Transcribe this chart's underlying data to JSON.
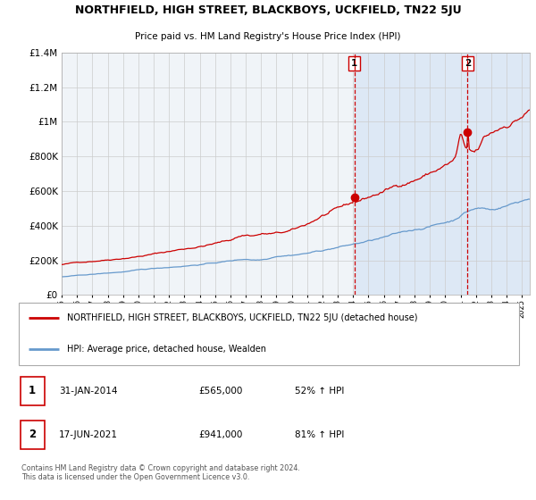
{
  "title": "NORTHFIELD, HIGH STREET, BLACKBOYS, UCKFIELD, TN22 5JU",
  "subtitle": "Price paid vs. HM Land Registry's House Price Index (HPI)",
  "red_label": "NORTHFIELD, HIGH STREET, BLACKBOYS, UCKFIELD, TN22 5JU (detached house)",
  "blue_label": "HPI: Average price, detached house, Wealden",
  "annotation1_label": "1",
  "annotation1_date": "31-JAN-2014",
  "annotation1_price": "£565,000",
  "annotation1_hpi": "52% ↑ HPI",
  "annotation2_label": "2",
  "annotation2_date": "17-JUN-2021",
  "annotation2_price": "£941,000",
  "annotation2_hpi": "81% ↑ HPI",
  "footer": "Contains HM Land Registry data © Crown copyright and database right 2024.\nThis data is licensed under the Open Government Licence v3.0.",
  "ylim": [
    0,
    1400000
  ],
  "yticks": [
    0,
    200000,
    400000,
    600000,
    800000,
    1000000,
    1200000,
    1400000
  ],
  "background_color": "#ffffff",
  "plot_bg_color": "#f0f4f8",
  "shaded_region_color": "#dde8f5",
  "grid_color": "#cccccc",
  "red_line_color": "#cc0000",
  "blue_line_color": "#6699cc",
  "dashed_line_color": "#cc0000",
  "annotation_dot_color": "#cc0000",
  "marker1_x": 2014.08,
  "marker1_y": 565000,
  "marker2_x": 2021.46,
  "marker2_y": 941000,
  "shade_start": 2014.08,
  "shade_end": 2025.5,
  "xmin": 1995.0,
  "xmax": 2025.5
}
